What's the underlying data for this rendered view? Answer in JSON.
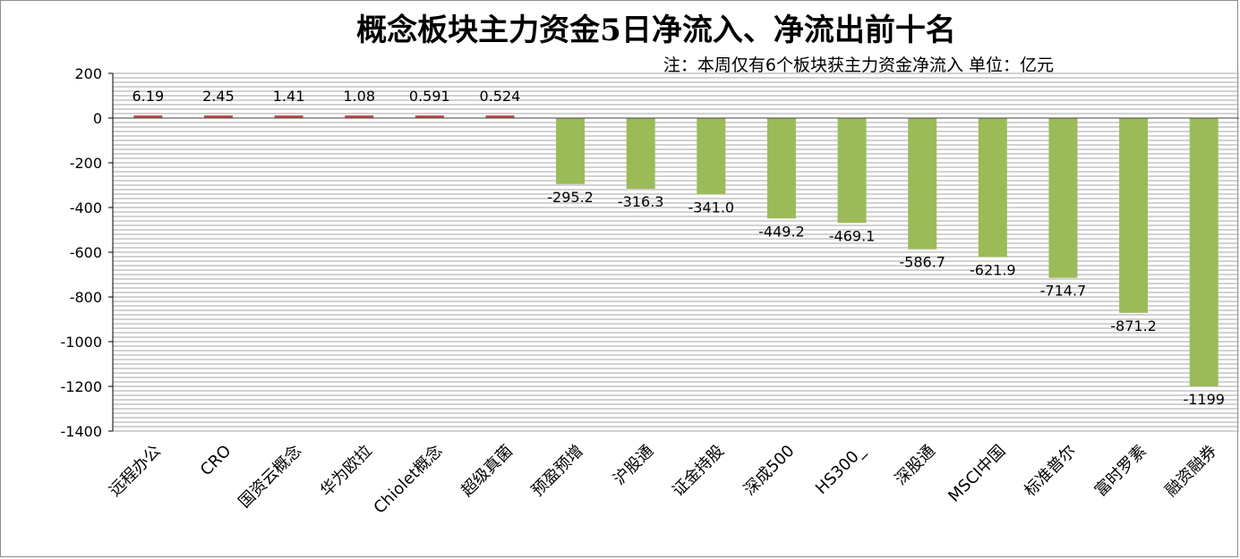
{
  "chart_data": {
    "type": "bar",
    "title": "概念板块主力资金5日净流入、净流出前十名",
    "note": "注：本周仅有6个板块获主力资金净流入 单位：亿元",
    "xlabel": "",
    "ylabel": "",
    "ylim": [
      -1400,
      200
    ],
    "yticks": [
      200,
      0,
      -200,
      -400,
      -600,
      -800,
      -1000,
      -1200,
      -1400
    ],
    "ytick_labels": [
      "200",
      "0",
      "-200",
      "-400",
      "-600",
      "-800",
      "-1000",
      "-1200",
      "-1400"
    ],
    "grid": true,
    "legend": "none",
    "categories": [
      "远程办公",
      "CRO",
      "国资云概念",
      "华为欧拉",
      "Chiolet概念",
      "超级真菌",
      "预盈预增",
      "沪股通",
      "证金持股",
      "深成500",
      "HS300_",
      "深股通",
      "MSCI中国",
      "标准普尔",
      "富时罗素",
      "融资融券"
    ],
    "values": [
      6.19,
      2.45,
      1.41,
      1.08,
      0.591,
      0.524,
      -295.2,
      -316.3,
      -341.0,
      -449.2,
      -469.1,
      -586.7,
      -621.9,
      -714.7,
      -871.2,
      -1199
    ],
    "value_labels": [
      "6.19",
      "2.45",
      "1.41",
      "1.08",
      "0.591",
      "0.524",
      "-295.2",
      "-316.3",
      "-341.0",
      "-449.2",
      "-469.1",
      "-586.7",
      "-621.9",
      "-714.7",
      "-871.2",
      "-1199"
    ],
    "colors": {
      "positive": "#c0504d",
      "negative": "#9bbb59",
      "grid": "#a6a6a6",
      "axis": "#000000"
    }
  }
}
